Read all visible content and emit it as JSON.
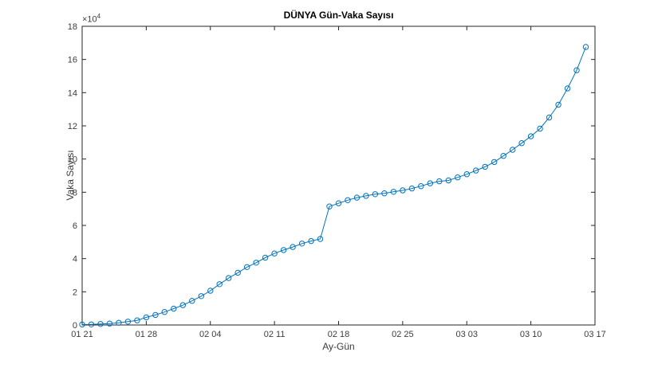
{
  "chart_data": {
    "type": "line",
    "title": "DÜNYA Gün-Vaka Sayısı",
    "xlabel": "Ay-Gün",
    "ylabel": "Vaka Sayısı",
    "y_unit_multiplier": {
      "base": "×10",
      "exp": "4"
    },
    "grid": "off",
    "legend": "none",
    "line_color": "#0072BD",
    "marker": "open-circle",
    "axis_color": "#262626",
    "tick_label_color": "#3c3c3c",
    "x_axis": {
      "tick_labels": [
        "01 21",
        "01 28",
        "02 04",
        "02 11",
        "02 18",
        "02 25",
        "03 03",
        "03 10",
        "03 17"
      ],
      "tick_positions_days": [
        0,
        7,
        14,
        21,
        28,
        35,
        42,
        49,
        56
      ],
      "range_days": [
        0,
        56
      ]
    },
    "y_axis": {
      "tick_labels": [
        "0",
        "2",
        "4",
        "6",
        "8",
        "10",
        "12",
        "14",
        "16",
        "18"
      ],
      "tick_values_cases": [
        0,
        20000,
        40000,
        60000,
        80000,
        100000,
        120000,
        140000,
        160000,
        180000
      ],
      "range_cases": [
        0,
        180000
      ]
    },
    "x": [
      "01 21",
      "01 22",
      "01 23",
      "01 24",
      "01 25",
      "01 26",
      "01 27",
      "01 28",
      "01 29",
      "01 30",
      "01 31",
      "02 01",
      "02 02",
      "02 03",
      "02 04",
      "02 05",
      "02 06",
      "02 07",
      "02 08",
      "02 09",
      "02 10",
      "02 11",
      "02 12",
      "02 13",
      "02 14",
      "02 15",
      "02 16",
      "02 17",
      "02 18",
      "02 19",
      "02 20",
      "02 21",
      "02 22",
      "02 23",
      "02 24",
      "02 25",
      "02 26",
      "02 27",
      "02 28",
      "02 29",
      "03 01",
      "03 02",
      "03 03",
      "03 04",
      "03 05",
      "03 06",
      "03 07",
      "03 08",
      "03 09",
      "03 10",
      "03 11",
      "03 12",
      "03 13",
      "03 14",
      "03 15",
      "03 16"
    ],
    "values": [
      282,
      314,
      581,
      846,
      1320,
      2014,
      2798,
      4593,
      6065,
      7818,
      9826,
      11953,
      14557,
      17391,
      20630,
      24554,
      28276,
      31481,
      34886,
      37558,
      40554,
      43103,
      45171,
      46997,
      49053,
      50580,
      51857,
      71429,
      73332,
      75204,
      76769,
      77794,
      78811,
      79331,
      80239,
      81109,
      82294,
      83652,
      85403,
      86604,
      87137,
      88948,
      90869,
      93091,
      95324,
      98192,
      101927,
      105586,
      109577,
      113702,
      118326,
      125048,
      132758,
      142539,
      153517,
      167515
    ]
  }
}
